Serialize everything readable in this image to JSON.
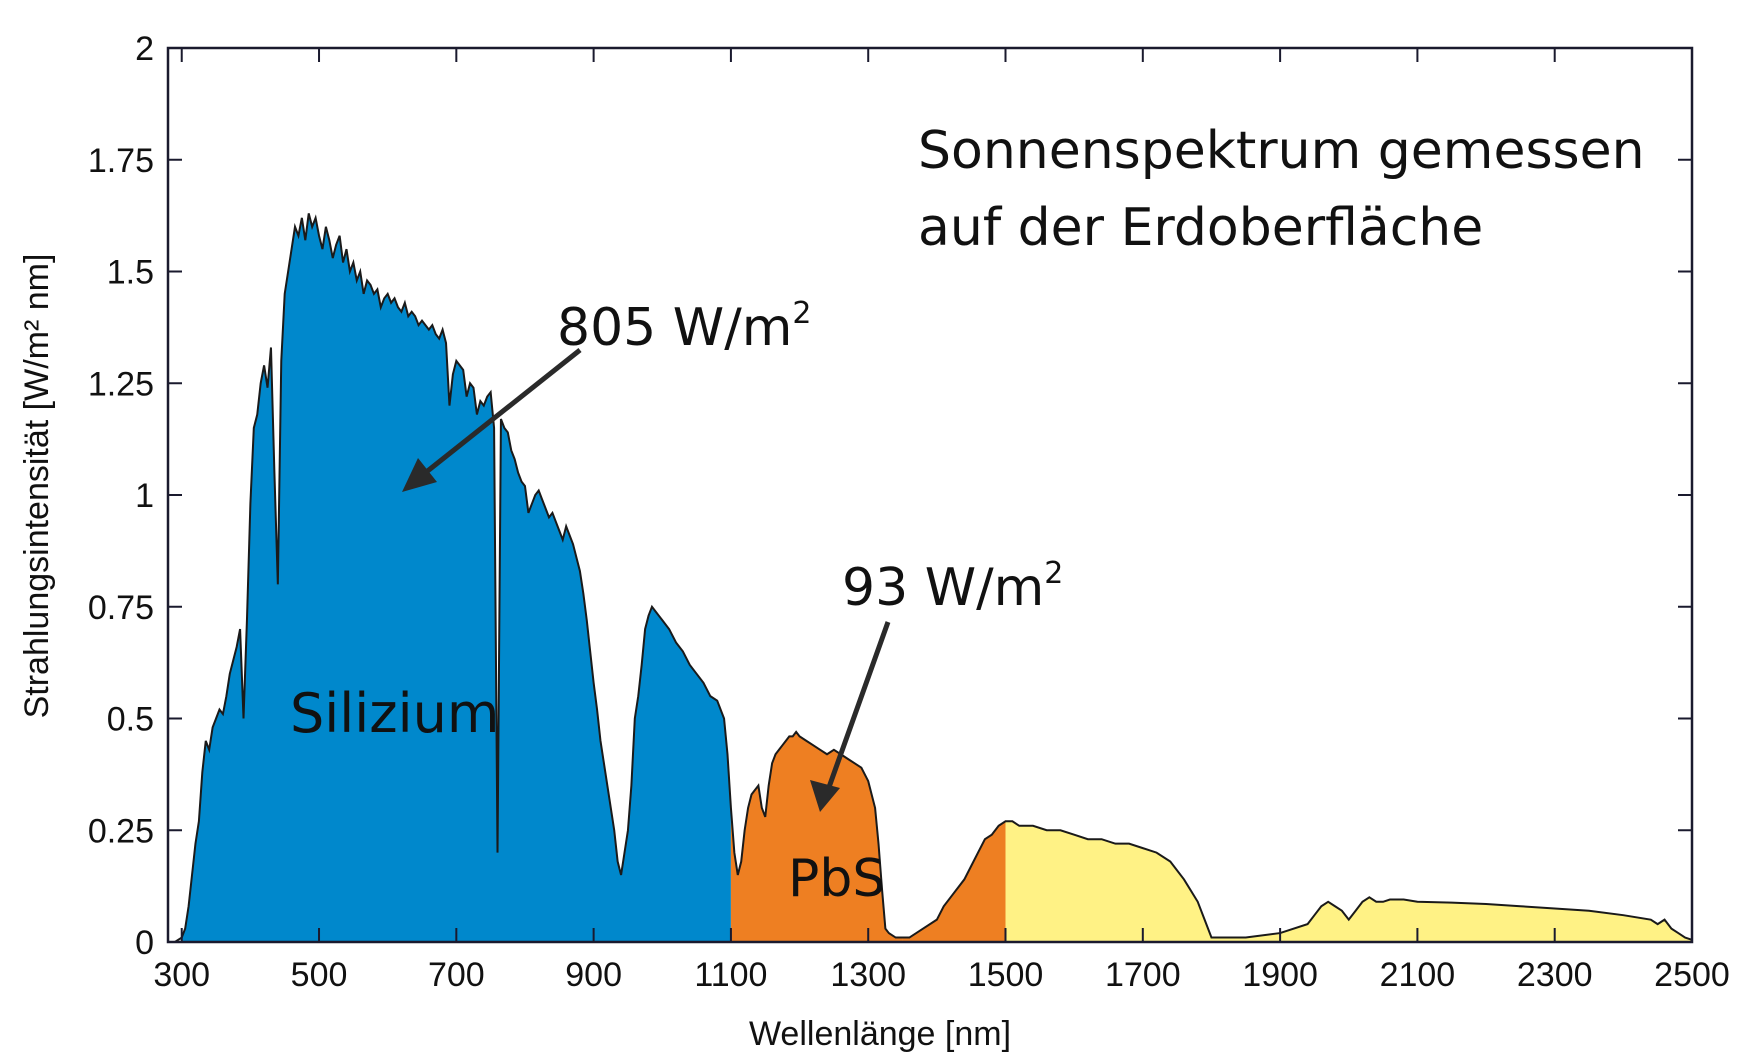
{
  "chart_data": {
    "type": "area",
    "title": "Sonnenspektrum gemessen auf der Erdoberfläche",
    "title_lines": [
      "Sonnenspektrum gemessen",
      "auf der Erdoberfläche"
    ],
    "xlabel": "Wellenlänge [nm]",
    "ylabel": "Strahlungsintensität [W/m² nm]",
    "xlim": [
      280,
      2500
    ],
    "ylim": [
      0,
      2
    ],
    "xticks": [
      300,
      500,
      700,
      900,
      1100,
      1300,
      1500,
      1700,
      1900,
      2100,
      2300,
      2500
    ],
    "yticks": [
      0,
      0.25,
      0.5,
      0.75,
      1,
      1.25,
      1.5,
      1.75,
      2
    ],
    "ytick_labels": [
      "0",
      "0.25",
      "0.5",
      "0.75",
      "1",
      "1.25",
      "1.5",
      "1.75",
      "2"
    ],
    "grid": false,
    "regions": [
      {
        "name": "Silizium",
        "range": [
          300,
          1100
        ],
        "color": "#0088CC"
      },
      {
        "name": "PbS",
        "range": [
          1100,
          1350
        ],
        "color": "#EE7F22"
      },
      {
        "name": "",
        "range": [
          1350,
          1500
        ],
        "color": "#EE7F22"
      },
      {
        "name": "",
        "range": [
          1500,
          2500
        ],
        "color": "#FFF285"
      }
    ],
    "annotations": [
      {
        "text": "805 W/m²",
        "value": "805",
        "unit": "W/m",
        "superscript": "2",
        "points_to": [
          600,
          1.0
        ]
      },
      {
        "text": "93 W/m²",
        "value": "93",
        "unit": "W/m",
        "superscript": "2",
        "points_to": [
          1220,
          0.28
        ]
      }
    ],
    "series": {
      "x": [
        280,
        290,
        300,
        305,
        310,
        315,
        320,
        325,
        330,
        335,
        340,
        345,
        350,
        355,
        360,
        365,
        370,
        375,
        380,
        385,
        390,
        395,
        400,
        405,
        410,
        415,
        420,
        425,
        430,
        435,
        440,
        445,
        450,
        455,
        460,
        465,
        470,
        475,
        480,
        485,
        490,
        495,
        500,
        505,
        510,
        515,
        520,
        525,
        530,
        535,
        540,
        545,
        550,
        555,
        560,
        565,
        570,
        575,
        580,
        585,
        590,
        595,
        600,
        605,
        610,
        615,
        620,
        625,
        630,
        635,
        640,
        645,
        650,
        655,
        660,
        665,
        670,
        675,
        680,
        685,
        690,
        695,
        700,
        705,
        710,
        715,
        720,
        725,
        730,
        735,
        740,
        745,
        750,
        755,
        760,
        765,
        770,
        775,
        780,
        785,
        790,
        795,
        800,
        805,
        810,
        815,
        820,
        825,
        830,
        835,
        840,
        845,
        850,
        855,
        860,
        865,
        870,
        875,
        880,
        885,
        890,
        895,
        900,
        905,
        910,
        915,
        920,
        925,
        930,
        935,
        940,
        945,
        950,
        955,
        960,
        965,
        970,
        975,
        980,
        985,
        990,
        995,
        1000,
        1010,
        1020,
        1030,
        1040,
        1050,
        1060,
        1070,
        1080,
        1090,
        1095,
        1100,
        1105,
        1110,
        1115,
        1120,
        1125,
        1130,
        1135,
        1140,
        1145,
        1150,
        1155,
        1160,
        1165,
        1170,
        1175,
        1180,
        1185,
        1190,
        1195,
        1200,
        1210,
        1220,
        1230,
        1240,
        1250,
        1260,
        1270,
        1280,
        1290,
        1300,
        1310,
        1315,
        1320,
        1325,
        1330,
        1340,
        1350,
        1360,
        1380,
        1400,
        1410,
        1420,
        1430,
        1440,
        1450,
        1460,
        1470,
        1480,
        1490,
        1500,
        1510,
        1520,
        1540,
        1560,
        1580,
        1600,
        1620,
        1640,
        1660,
        1680,
        1700,
        1720,
        1740,
        1760,
        1780,
        1790,
        1800,
        1810,
        1820,
        1850,
        1900,
        1940,
        1950,
        1960,
        1970,
        1980,
        1990,
        2000,
        2010,
        2020,
        2030,
        2040,
        2050,
        2060,
        2080,
        2100,
        2150,
        2200,
        2250,
        2300,
        2350,
        2400,
        2440,
        2450,
        2460,
        2470,
        2480,
        2490,
        2500
      ],
      "y": [
        0,
        0,
        0.01,
        0.03,
        0.08,
        0.15,
        0.22,
        0.27,
        0.38,
        0.45,
        0.43,
        0.48,
        0.5,
        0.52,
        0.51,
        0.55,
        0.6,
        0.63,
        0.66,
        0.7,
        0.5,
        0.72,
        0.98,
        1.15,
        1.18,
        1.25,
        1.29,
        1.24,
        1.33,
        1.05,
        0.8,
        1.3,
        1.45,
        1.5,
        1.55,
        1.6,
        1.58,
        1.62,
        1.57,
        1.63,
        1.6,
        1.62,
        1.58,
        1.55,
        1.6,
        1.57,
        1.53,
        1.56,
        1.58,
        1.52,
        1.55,
        1.5,
        1.52,
        1.48,
        1.5,
        1.45,
        1.48,
        1.47,
        1.45,
        1.46,
        1.42,
        1.44,
        1.45,
        1.43,
        1.44,
        1.42,
        1.41,
        1.43,
        1.4,
        1.41,
        1.4,
        1.38,
        1.39,
        1.38,
        1.37,
        1.38,
        1.36,
        1.35,
        1.37,
        1.34,
        1.2,
        1.27,
        1.3,
        1.29,
        1.28,
        1.22,
        1.25,
        1.24,
        1.18,
        1.21,
        1.2,
        1.22,
        1.23,
        1.15,
        0.2,
        1.17,
        1.15,
        1.14,
        1.1,
        1.08,
        1.05,
        1.03,
        1.02,
        0.96,
        0.98,
        1.0,
        1.01,
        0.99,
        0.97,
        0.95,
        0.96,
        0.94,
        0.92,
        0.9,
        0.93,
        0.91,
        0.89,
        0.86,
        0.83,
        0.78,
        0.72,
        0.65,
        0.58,
        0.52,
        0.45,
        0.4,
        0.35,
        0.3,
        0.25,
        0.18,
        0.15,
        0.2,
        0.25,
        0.35,
        0.5,
        0.55,
        0.62,
        0.7,
        0.73,
        0.75,
        0.74,
        0.73,
        0.72,
        0.7,
        0.67,
        0.65,
        0.62,
        0.6,
        0.58,
        0.55,
        0.54,
        0.5,
        0.42,
        0.3,
        0.2,
        0.15,
        0.18,
        0.25,
        0.3,
        0.33,
        0.34,
        0.35,
        0.3,
        0.28,
        0.35,
        0.4,
        0.42,
        0.43,
        0.44,
        0.45,
        0.46,
        0.46,
        0.47,
        0.46,
        0.45,
        0.44,
        0.43,
        0.42,
        0.43,
        0.42,
        0.41,
        0.4,
        0.39,
        0.36,
        0.3,
        0.22,
        0.12,
        0.03,
        0.02,
        0.01,
        0.01,
        0.01,
        0.03,
        0.05,
        0.08,
        0.1,
        0.12,
        0.14,
        0.17,
        0.2,
        0.23,
        0.24,
        0.26,
        0.27,
        0.27,
        0.26,
        0.26,
        0.25,
        0.25,
        0.24,
        0.23,
        0.23,
        0.22,
        0.22,
        0.21,
        0.2,
        0.18,
        0.14,
        0.09,
        0.05,
        0.01,
        0.01,
        0.01,
        0.01,
        0.02,
        0.04,
        0.06,
        0.08,
        0.09,
        0.08,
        0.07,
        0.05,
        0.07,
        0.09,
        0.1,
        0.09,
        0.09,
        0.095,
        0.095,
        0.09,
        0.088,
        0.085,
        0.08,
        0.075,
        0.07,
        0.06,
        0.05,
        0.04,
        0.05,
        0.03,
        0.02,
        0.01,
        0.005
      ]
    }
  }
}
